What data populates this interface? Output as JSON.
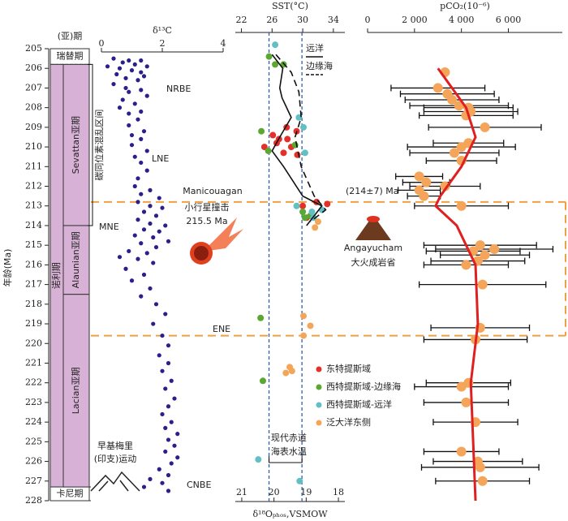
{
  "age_axis": {
    "label": "年龄(Ma)",
    "ylim": [
      205,
      228
    ],
    "yticks": [
      205,
      206,
      207,
      208,
      209,
      210,
      211,
      212,
      213,
      214,
      215,
      216,
      217,
      218,
      219,
      220,
      221,
      222,
      223,
      224,
      225,
      226,
      227,
      228
    ],
    "highlight_range": [
      212.8,
      219.6
    ],
    "highlight_color": "#f0a040"
  },
  "column": {
    "header": "(亚)期",
    "color": "#d8b2d6",
    "stages": [
      {
        "name": "瑞替期",
        "range": [
          205,
          205.8
        ]
      },
      {
        "name": "诺利期",
        "range": [
          205.8,
          227.3
        ]
      },
      {
        "name": "卡尼期",
        "range": [
          227.3,
          228
        ]
      }
    ],
    "substages": [
      {
        "name": "Sevattan亚期",
        "range": [
          205.8,
          214
        ]
      },
      {
        "name": "Alaunian亚期",
        "range": [
          214,
          217.5
        ]
      },
      {
        "name": "Lacian亚期",
        "range": [
          217.5,
          227.3
        ]
      }
    ]
  },
  "chart_data": [
    {
      "type": "scatter",
      "title": "δ¹³C",
      "xlim": [
        0,
        4
      ],
      "xticks": [
        0,
        2,
        4
      ],
      "bracket": {
        "label": "碳同位素混乱区间",
        "range": [
          205.8,
          214
        ]
      },
      "series": [
        {
          "color": "#2b1f8c",
          "x": [
            0.4,
            0.9,
            1.3,
            0.7,
            1.1,
            0.2,
            1.5,
            0.6,
            1.0,
            1.3,
            0.5,
            1.4,
            0.8,
            1.2,
            0.4,
            0.8,
            1.3,
            0.9,
            1.5,
            0.7,
            1.1,
            0.6,
            1.3,
            0.9,
            1.2,
            0.9,
            1.4,
            1.0,
            1.3,
            1.0,
            1.5,
            1.1,
            1.3,
            1.5,
            1.2,
            1.1,
            1.6,
            1.3,
            1.9,
            1.2,
            1.6,
            2.0,
            1.4,
            1.8,
            1.2,
            1.6,
            2.1,
            1.4,
            1.9,
            1.1,
            1.7,
            2.2,
            1.3,
            1.8,
            0.9,
            1.5,
            0.6,
            1.2,
            1.7,
            0.8,
            1.4,
            1.0,
            1.6,
            1.3,
            1.8,
            2.1,
            1.7,
            2.0,
            2.2,
            1.9,
            2.2,
            2.0,
            2.3,
            2.1,
            2.4,
            2.2,
            2.0,
            2.3,
            2.1,
            2.5,
            2.2,
            2.4,
            2.1,
            2.5,
            2.3,
            1.9,
            2.2,
            1.6,
            2.0,
            1.4,
            2.2
          ],
          "y": [
            205.5,
            205.6,
            205.6,
            205.7,
            205.8,
            205.9,
            205.9,
            206.0,
            206.1,
            206.2,
            206.3,
            206.4,
            206.5,
            206.6,
            206.8,
            207.0,
            207.1,
            207.2,
            207.4,
            207.6,
            207.8,
            208.0,
            208.2,
            208.3,
            208.6,
            208.9,
            209.2,
            209.4,
            209.6,
            209.9,
            210.2,
            210.5,
            210.8,
            211.2,
            211.6,
            212.0,
            212.2,
            212.4,
            212.6,
            212.8,
            213.0,
            213.1,
            213.3,
            213.5,
            213.7,
            213.9,
            214.0,
            214.2,
            214.3,
            214.5,
            214.6,
            214.8,
            214.9,
            215.1,
            215.3,
            215.4,
            215.6,
            215.7,
            215.9,
            216.2,
            216.5,
            216.8,
            217.2,
            217.6,
            218.0,
            218.5,
            219.0,
            219.6,
            220.1,
            220.6,
            221.0,
            221.4,
            221.9,
            222.3,
            222.8,
            223.2,
            223.6,
            224.0,
            224.3,
            224.6,
            224.9,
            225.2,
            225.5,
            225.8,
            226.1,
            226.4,
            226.7,
            226.9,
            227.1,
            227.3,
            227.5
          ]
        }
      ]
    },
    {
      "type": "scatter",
      "title": "SST(°C)",
      "xlim": [
        21.2,
        35.5
      ],
      "xticks": [
        22,
        26,
        30,
        34
      ],
      "x2title": "δ¹⁸Oₚₕₒₛ,VSMOW",
      "x2lim": [
        21.2,
        17.8
      ],
      "x2ticks": [
        21,
        20,
        19,
        18
      ],
      "reference": {
        "label": "现代赤道海表水温",
        "values": [
          25.6,
          29.9
        ],
        "color": "#2f5fb0"
      },
      "series": [
        {
          "name": "东特提斯域",
          "color": "#e3302a",
          "x": [
            27.9,
            26.1,
            28.0,
            26.6,
            25.0,
            28.5,
            27.5,
            26.9,
            29.3,
            29.2,
            30.0,
            31.8,
            33.2,
            30.5
          ],
          "y": [
            209.0,
            209.4,
            209.6,
            209.8,
            210.0,
            210.0,
            210.3,
            209.6,
            210.4,
            209.2,
            213.0,
            212.8,
            212.9,
            213.6
          ]
        },
        {
          "name": "西特提斯域-边缘海",
          "color": "#5aa832",
          "x": [
            25.6,
            26.4,
            27.5,
            24.6,
            25.5,
            29.0,
            30.0,
            30.3,
            31.0,
            24.5,
            24.8
          ],
          "y": [
            205.4,
            205.8,
            205.8,
            209.2,
            210.2,
            209.9,
            213.3,
            213.6,
            213.5,
            218.7,
            221.9
          ]
        },
        {
          "name": "西特提斯域-远洋",
          "color": "#62c0c4",
          "x": [
            26.4,
            29.5,
            30.1,
            30.3,
            29.2,
            31.2,
            31.4,
            32.5,
            24.2,
            29.6
          ],
          "y": [
            204.8,
            208.5,
            209.0,
            210.3,
            213.0,
            213.3,
            213.6,
            213.2,
            225.9,
            227.0
          ]
        },
        {
          "name": "泛大洋东侧",
          "color": "#f2a65a",
          "x": [
            32.0,
            31.6,
            30.1,
            31.0,
            30.1,
            28.3,
            28.6,
            27.8
          ],
          "y": [
            213.8,
            214.1,
            218.6,
            219.1,
            219.6,
            221.2,
            221.4,
            221.5
          ]
        }
      ],
      "curves": [
        {
          "name": "远洋",
          "color": "#111111",
          "dash": false,
          "x": [
            26.0,
            27.4,
            27.0,
            27.3,
            28.5,
            27.0,
            26.0,
            27.5,
            30.0,
            32.5,
            31.5,
            30.5
          ],
          "y": [
            205.3,
            206.0,
            207.0,
            207.5,
            208.5,
            209.5,
            210.2,
            211.0,
            212.5,
            213.0,
            213.5,
            214.0
          ]
        },
        {
          "name": "边缘海",
          "color": "#111111",
          "dash": true,
          "x": [
            26.5,
            28.5,
            29.5,
            29.8,
            29.0,
            29.8,
            31.5,
            33.0,
            31.0
          ],
          "y": [
            205.3,
            206.2,
            207.2,
            208.5,
            209.5,
            211.0,
            212.5,
            213.2,
            213.8
          ]
        }
      ]
    },
    {
      "type": "errorbar",
      "title": "pCO₂(10⁻⁶)",
      "xlim": [
        0,
        8300
      ],
      "xticks": [
        0,
        {
          "value": 2000,
          "label": "2 000"
        },
        {
          "value": 4000,
          "label": "4 000"
        },
        {
          "value": 6000,
          "label": "6 000"
        }
      ],
      "series": [
        {
          "color": "#f5a55a",
          "y": [
            206.2,
            207.0,
            207.3,
            207.6,
            207.9,
            208.0,
            208.2,
            208.4,
            209.0,
            209.8,
            210.0,
            210.3,
            210.7,
            211.5,
            211.8,
            212.0,
            212.2,
            212.5,
            213.0,
            215.0,
            215.2,
            215.3,
            215.5,
            215.8,
            216.0,
            217.0,
            219.2,
            219.8,
            222.0,
            222.2,
            223.0,
            224.0,
            225.5,
            226.0,
            226.3,
            227.0
          ],
          "values": [
            3300,
            3000,
            3400,
            3600,
            3900,
            4300,
            4400,
            4200,
            5000,
            4300,
            4000,
            3700,
            4000,
            2200,
            2500,
            3300,
            2200,
            2400,
            4000,
            4800,
            5400,
            4500,
            5000,
            4700,
            4200,
            4900,
            4800,
            4600,
            4300,
            4000,
            4200,
            4600,
            4000,
            4700,
            4800,
            4900
          ],
          "errors": [
            null,
            2000,
            2000,
            2000,
            2100,
            1900,
            2000,
            2000,
            2400,
            1500,
            2300,
            1900,
            1500,
            1000,
            1000,
            1500,
            900,
            700,
            2000,
            2400,
            2500,
            2000,
            1900,
            2000,
            1800,
            2700,
            2100,
            2200,
            1800,
            2000,
            1800,
            1800,
            1600,
            1900,
            2500,
            2000
          ]
        }
      ],
      "curve": {
        "color": "#e02020",
        "x": [
          3000,
          4200,
          4600,
          4000,
          3100,
          2900,
          3800,
          4600,
          4700,
          4400,
          4500,
          4600
        ],
        "y": [
          206,
          208,
          209.5,
          211,
          212.5,
          213,
          214,
          216,
          219,
          222,
          225,
          228
        ]
      }
    }
  ],
  "annotations": {
    "nrbe": "NRBE",
    "lne": "LNE",
    "mne": "MNE",
    "ene": "ENE",
    "cnbe": "CNBE",
    "impact_name": "Manicouagan",
    "impact_kind": "小行星撞击",
    "impact_age": "215.5 Ma",
    "lip_age": "(214±7) Ma",
    "lip_name": "Angayucham",
    "lip_kind": "大火成岩省",
    "orogeny_1": "早基梅里",
    "orogeny_2": "(印支)运动"
  }
}
